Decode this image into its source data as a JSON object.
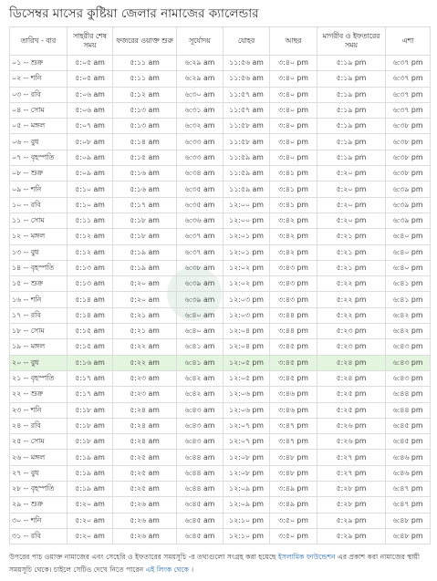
{
  "page": {
    "title": "ডিসেম্বর মাসের কুষ্টিয়া জেলার নামাজের ক্যালেন্ডার"
  },
  "table": {
    "headers": [
      "তারিখ - বার",
      "সাহরীর শেষ সময়",
      "ফজরের ওয়াক্ত শুরু",
      "সূর্যোদয়",
      "যোহর",
      "আছর",
      "মাগরীব ও ইফতারের সময়",
      "এশা"
    ],
    "highlight_row": 20,
    "rows": [
      [
        "০১ -- শুক্র",
        "৫:০৫ am",
        "৫:১১ am",
        "৬:২৯ am",
        "১১:৫৬ am",
        "৩:৪০ pm",
        "৫:১৯ pm",
        "৬:৩৭ pm"
      ],
      [
        "০২ -- শনি",
        "৫:০৫ am",
        "৫:১১ am",
        "৬:২৯ am",
        "১১:৫৬ am",
        "৩:৪০ pm",
        "৫:১৯ pm",
        "৬:৩৭ pm"
      ],
      [
        "০৩ -- রবি",
        "৫:০৬ am",
        "৫:১২ am",
        "৬:৩০ am",
        "১১:৫৭ am",
        "৩:৪০ pm",
        "৫:১৯ pm",
        "৬:৩৭ pm"
      ],
      [
        "০৪ -- সোম",
        "৫:০৬ am",
        "৫:১৩ am",
        "৬:৩১ am",
        "১১:৫৭ am",
        "৩:৪০ pm",
        "৫:১৯ pm",
        "৬:৩৭ pm"
      ],
      [
        "০৫ -- মঙ্গল",
        "৫:০৭ am",
        "৫:১৩ am",
        "৬:৩২ am",
        "১১:৫৮ am",
        "৩:৪০ pm",
        "৫:১৯ pm",
        "৬:৩৮ pm"
      ],
      [
        "০৬ -- বুধ",
        "৫:০৮ am",
        "৫:১৪ am",
        "৬:৩৩ am",
        "১১:৫৮ am",
        "৩:৪০ pm",
        "৫:১৯ pm",
        "৬:৩৮ pm"
      ],
      [
        "০৭ -- বৃহস্পতি",
        "৫:০৯ am",
        "৫:১৫ am",
        "৬:৩৩ am",
        "১১:৫৯ am",
        "৩:৪০ pm",
        "৫:১৯ pm",
        "৬:৩৮ pm"
      ],
      [
        "০৮ -- শুক্র",
        "৫:০৯ am",
        "৫:১৬ am",
        "৬:৩৪ am",
        "১১:৫৯ am",
        "৩:৪১ pm",
        "৫:২০ pm",
        "৬:৩৮ pm"
      ],
      [
        "০৯ -- শনি",
        "৫:১০ am",
        "৫:১৬ am",
        "৬:৩৫ am",
        "১১:৫৯ am",
        "৩:৪১ pm",
        "৫:২০ pm",
        "৬:৩৯ pm"
      ],
      [
        "১০ -- রবি",
        "৫:১০ am",
        "৫:১৭ am",
        "৬:৩৫ am",
        "১২:০০ pm",
        "৩:৪১ pm",
        "৫:২০ pm",
        "৬:৩৯ pm"
      ],
      [
        "১১ -- সোম",
        "৫:১১ am",
        "৫:১৮ am",
        "৬:৩৬ am",
        "১২:০০ pm",
        "৩:৪২ pm",
        "৫:২০ pm",
        "৬:৩৯ pm"
      ],
      [
        "১২ -- মঙ্গল",
        "৫:১২ am",
        "৫:১৮ am",
        "৬:৩৭ am",
        "১২:০১ pm",
        "৩:৪২ pm",
        "৫:২১ pm",
        "৬:৪০ pm"
      ],
      [
        "১৩ -- বুধ",
        "৫:১২ am",
        "৫:১৯ am",
        "৬:৩৭ am",
        "১২:০১ pm",
        "৩:৪২ pm",
        "৫:২১ pm",
        "৬:৪০ pm"
      ],
      [
        "১৪ -- বৃহস্পতি",
        "৫:১৩ am",
        "৫:১৯ am",
        "৬:৩৮ am",
        "১২:০২ pm",
        "৩:৪৩ pm",
        "৫:২১ pm",
        "৬:৪০ pm"
      ],
      [
        "১৫ -- শুক্র",
        "৫:১৩ am",
        "৫:২০ am",
        "৬:৩৯ am",
        "১২:০২ pm",
        "৩:৪৩ pm",
        "৫:২২ pm",
        "৬:৪১ pm"
      ],
      [
        "১৬ -- শনি",
        "৫:১৪ am",
        "৫:২০ am",
        "৬:৩৯ am",
        "১২:০৩ pm",
        "৩:৪৩ pm",
        "৫:২২ pm",
        "৬:৪১ pm"
      ],
      [
        "১৭ -- রবি",
        "৫:১৪ am",
        "৫:২১ am",
        "৬:৪০ am",
        "১২:০৩ pm",
        "৩:৪৪ pm",
        "৫:২২ pm",
        "৬:৪২ pm"
      ],
      [
        "১৮ -- সোম",
        "৫:১৫ am",
        "৫:২১ am",
        "৬:৪০ am",
        "১২:০৪ pm",
        "৩:৪৪ pm",
        "৫:২৩ pm",
        "৬:৪২ pm"
      ],
      [
        "১৯ -- মঙ্গল",
        "৫:১৫ am",
        "৫:২২ am",
        "৬:৪১ am",
        "১২:০৪ pm",
        "৩:৪৫ pm",
        "৫:২৩ pm",
        "৬:৪৩ pm"
      ],
      [
        "২০ -- বুধ",
        "৫:১৬ am",
        "৫:২২ am",
        "৬:৪১ am",
        "১২:০৫ pm",
        "৩:৪৫ pm",
        "৫:২৪ pm",
        "৬:৪৩ pm"
      ],
      [
        "২১ -- বৃহস্পতি",
        "৫:১৭ am",
        "৫:২৩ am",
        "৬:৪২ am",
        "১২:০৫ pm",
        "৩:৪৫ pm",
        "৫:২৪ pm",
        "৬:৪৩ pm"
      ],
      [
        "২২ -- শুক্র",
        "৫:১৭ am",
        "৫:২৩ am",
        "৬:৪২ am",
        "১২:০৬ pm",
        "৩:৪৬ pm",
        "৫:২৫ pm",
        "৬:৪৪ pm"
      ],
      [
        "২৩ -- শনি",
        "৫:১৮ am",
        "৫:২৪ am",
        "৬:৪৩ am",
        "১২:০৬ pm",
        "৩:৪৬ pm",
        "৫:২৫ pm",
        "৬:৪৪ pm"
      ],
      [
        "২৪ -- রবি",
        "৫:১৮ am",
        "৫:২৪ am",
        "৬:৪৩ am",
        "১২:০৭ pm",
        "৩:৪৭ pm",
        "৫:২৬ pm",
        "৬:৪৫ pm"
      ],
      [
        "২৫ -- সোম",
        "৫:১৮ am",
        "৫:২৪ am",
        "৬:৪৩ am",
        "১২:০৭ pm",
        "৩:৪৭ pm",
        "৫:২৬ pm",
        "৬:৪৫ pm"
      ],
      [
        "২৬ -- মঙ্গল",
        "৫:১৯ am",
        "৫:২৫ am",
        "৬:৪৪ am",
        "১২:০৮ pm",
        "৩:৪৮ pm",
        "৫:২৭ pm",
        "৬:৪৬ pm"
      ],
      [
        "২৭ -- বুধ",
        "৫:১৯ am",
        "৫:২৫ am",
        "৬:৪৪ am",
        "১২:০৮ pm",
        "৩:৪৮ pm",
        "৫:২৭ pm",
        "৬:৪৬ pm"
      ],
      [
        "২৮ -- বৃহস্পতি",
        "৫:১৯ am",
        "৫:২৫ am",
        "৬:৪৪ am",
        "১২:০৯ pm",
        "৩:৪৯ pm",
        "৫:২৮ pm",
        "৬:৪৭ pm"
      ],
      [
        "২৯ -- শুক্র",
        "৫:২০ am",
        "৫:২৬ am",
        "৬:৪৫ am",
        "১২:০৯ pm",
        "৩:৪৯ pm",
        "৫:২৮ pm",
        "৬:৪৭ pm"
      ],
      [
        "৩০ -- শনি",
        "৫:২০ am",
        "৫:২৬ am",
        "৬:৪৫ am",
        "১২:১০ pm",
        "৩:৫০ pm",
        "৫:২৯ pm",
        "৬:৪৮ pm"
      ],
      [
        "৩১ -- রবি",
        "৫:২০ am",
        "৫:২৬ am",
        "৬:৪৫ am",
        "১২:১০ pm",
        "৩:৫০ pm",
        "৫:২৯ pm",
        "৬:৪৮ pm"
      ]
    ]
  },
  "footer": {
    "text_1": "উপরের পাচ ওয়াক্ত নামাজের এবং সেহেরি ও ইফতারের সময়সূচি -র তথ্যগুলো সংগ্রহ করা হয়েছে ",
    "link_1": "ইসলামিক ফাউন্ডেশন",
    "text_2": " এর প্রকাশ করা নামাজের স্থায়ী সময়সূচি থেকে। চাইলে সেটিও দেখে নিতে পারেন ",
    "link_2": "এই লিংক থেকে",
    "text_3": " ।"
  }
}
